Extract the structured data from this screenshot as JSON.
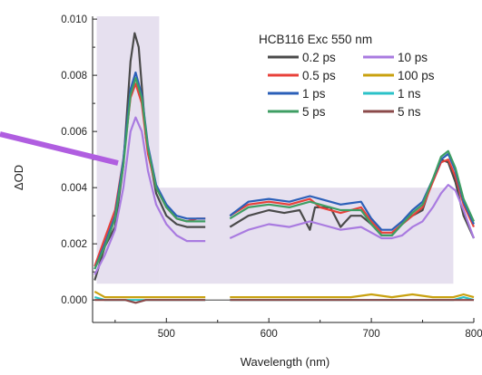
{
  "chart_data": {
    "type": "line",
    "title": "",
    "xlabel": "Wavelength (nm)",
    "ylabel": "ΔOD",
    "xlim": [
      428,
      800
    ],
    "ylim": [
      -0.0008,
      0.0101
    ],
    "x_ticks": [
      500,
      600,
      700,
      800
    ],
    "x_tick_labels": [
      "500",
      "600",
      "700",
      "800"
    ],
    "y_ticks": [
      0.0,
      0.002,
      0.004,
      0.006,
      0.008,
      0.01
    ],
    "y_tick_labels": [
      "0.000",
      "0.002",
      "0.004",
      "0.006",
      "0.008",
      "0.010"
    ],
    "legend_title": "HCB116 Exc 550 nm",
    "legend_position": "top-right",
    "gap_nm": [
      538,
      562
    ],
    "shaded_regions": [
      {
        "x": [
          432,
          493
        ],
        "y": [
          0.00058,
          0.0101
        ],
        "color": "#ddd5ea"
      },
      {
        "x": [
          493,
          780
        ],
        "y": [
          0.00058,
          0.004
        ],
        "color": "#ddd5ea"
      }
    ],
    "annotation_arrow": {
      "color": "#b05ee0",
      "from": [
        350,
        0.0056
      ],
      "to": [
        465,
        0.0045
      ]
    },
    "series": [
      {
        "name": "0.2 ps",
        "color": "#4a4a4a",
        "values": [
          [
            430,
            0.0007
          ],
          [
            440,
            0.0019
          ],
          [
            450,
            0.0026
          ],
          [
            458,
            0.0048
          ],
          [
            465,
            0.0085
          ],
          [
            469,
            0.0095
          ],
          [
            473,
            0.009
          ],
          [
            480,
            0.0058
          ],
          [
            490,
            0.0038
          ],
          [
            500,
            0.003
          ],
          [
            510,
            0.0027
          ],
          [
            520,
            0.0026
          ],
          [
            530,
            0.0026
          ],
          [
            538,
            0.0026
          ],
          [
            562,
            0.0026
          ],
          [
            580,
            0.003
          ],
          [
            600,
            0.0032
          ],
          [
            615,
            0.0031
          ],
          [
            630,
            0.0032
          ],
          [
            640,
            0.0025
          ],
          [
            645,
            0.0033
          ],
          [
            660,
            0.0033
          ],
          [
            670,
            0.0026
          ],
          [
            680,
            0.003
          ],
          [
            690,
            0.003
          ],
          [
            700,
            0.0027
          ],
          [
            710,
            0.0023
          ],
          [
            720,
            0.0023
          ],
          [
            730,
            0.0027
          ],
          [
            740,
            0.003
          ],
          [
            750,
            0.0032
          ],
          [
            760,
            0.0043
          ],
          [
            768,
            0.005
          ],
          [
            775,
            0.0049
          ],
          [
            782,
            0.0042
          ],
          [
            790,
            0.003
          ],
          [
            800,
            0.0022
          ]
        ]
      },
      {
        "name": "0.5 ps",
        "color": "#e8413a",
        "values": [
          [
            430,
            0.0012
          ],
          [
            440,
            0.0022
          ],
          [
            450,
            0.0032
          ],
          [
            458,
            0.005
          ],
          [
            465,
            0.0072
          ],
          [
            470,
            0.0077
          ],
          [
            476,
            0.007
          ],
          [
            482,
            0.0052
          ],
          [
            490,
            0.004
          ],
          [
            500,
            0.0033
          ],
          [
            510,
            0.0029
          ],
          [
            520,
            0.0028
          ],
          [
            530,
            0.0029
          ],
          [
            538,
            0.0029
          ],
          [
            562,
            0.003
          ],
          [
            580,
            0.0034
          ],
          [
            600,
            0.0035
          ],
          [
            620,
            0.0034
          ],
          [
            640,
            0.0036
          ],
          [
            650,
            0.0033
          ],
          [
            670,
            0.0031
          ],
          [
            690,
            0.0033
          ],
          [
            700,
            0.0028
          ],
          [
            710,
            0.0024
          ],
          [
            720,
            0.0024
          ],
          [
            730,
            0.0027
          ],
          [
            740,
            0.003
          ],
          [
            750,
            0.0033
          ],
          [
            760,
            0.0042
          ],
          [
            768,
            0.0049
          ],
          [
            775,
            0.005
          ],
          [
            782,
            0.0044
          ],
          [
            790,
            0.0034
          ],
          [
            800,
            0.0026
          ]
        ]
      },
      {
        "name": "1 ps",
        "color": "#2b5fb8",
        "values": [
          [
            430,
            0.0011
          ],
          [
            440,
            0.002
          ],
          [
            450,
            0.003
          ],
          [
            458,
            0.005
          ],
          [
            465,
            0.0075
          ],
          [
            470,
            0.0081
          ],
          [
            476,
            0.0073
          ],
          [
            482,
            0.0055
          ],
          [
            490,
            0.0041
          ],
          [
            500,
            0.0034
          ],
          [
            510,
            0.003
          ],
          [
            520,
            0.0029
          ],
          [
            530,
            0.0029
          ],
          [
            538,
            0.0029
          ],
          [
            562,
            0.003
          ],
          [
            580,
            0.0035
          ],
          [
            600,
            0.0036
          ],
          [
            620,
            0.0035
          ],
          [
            640,
            0.0037
          ],
          [
            650,
            0.0036
          ],
          [
            670,
            0.0034
          ],
          [
            690,
            0.0035
          ],
          [
            700,
            0.0029
          ],
          [
            710,
            0.0025
          ],
          [
            720,
            0.0025
          ],
          [
            730,
            0.0028
          ],
          [
            740,
            0.0032
          ],
          [
            750,
            0.0035
          ],
          [
            760,
            0.0043
          ],
          [
            768,
            0.005
          ],
          [
            775,
            0.0052
          ],
          [
            782,
            0.0046
          ],
          [
            790,
            0.0035
          ],
          [
            800,
            0.0027
          ]
        ]
      },
      {
        "name": "5 ps",
        "color": "#3e9e63",
        "values": [
          [
            430,
            0.0011
          ],
          [
            440,
            0.0019
          ],
          [
            450,
            0.0029
          ],
          [
            458,
            0.0048
          ],
          [
            465,
            0.0073
          ],
          [
            470,
            0.0079
          ],
          [
            476,
            0.0072
          ],
          [
            482,
            0.0054
          ],
          [
            490,
            0.004
          ],
          [
            500,
            0.0033
          ],
          [
            510,
            0.0029
          ],
          [
            520,
            0.0028
          ],
          [
            530,
            0.0028
          ],
          [
            538,
            0.0028
          ],
          [
            562,
            0.0029
          ],
          [
            580,
            0.0033
          ],
          [
            600,
            0.0034
          ],
          [
            620,
            0.0033
          ],
          [
            640,
            0.0035
          ],
          [
            650,
            0.0034
          ],
          [
            670,
            0.0032
          ],
          [
            690,
            0.0032
          ],
          [
            700,
            0.0027
          ],
          [
            710,
            0.0023
          ],
          [
            720,
            0.0023
          ],
          [
            730,
            0.0027
          ],
          [
            740,
            0.0031
          ],
          [
            750,
            0.0034
          ],
          [
            760,
            0.0043
          ],
          [
            768,
            0.0051
          ],
          [
            775,
            0.0053
          ],
          [
            782,
            0.0047
          ],
          [
            790,
            0.0036
          ],
          [
            800,
            0.0028
          ]
        ]
      },
      {
        "name": "10 ps",
        "color": "#a97be0",
        "values": [
          [
            430,
            0.0009
          ],
          [
            440,
            0.0016
          ],
          [
            450,
            0.0025
          ],
          [
            458,
            0.004
          ],
          [
            465,
            0.006
          ],
          [
            470,
            0.0065
          ],
          [
            476,
            0.006
          ],
          [
            482,
            0.0046
          ],
          [
            490,
            0.0034
          ],
          [
            500,
            0.0027
          ],
          [
            510,
            0.0023
          ],
          [
            520,
            0.0021
          ],
          [
            530,
            0.0021
          ],
          [
            538,
            0.0021
          ],
          [
            562,
            0.0022
          ],
          [
            580,
            0.0025
          ],
          [
            600,
            0.0027
          ],
          [
            620,
            0.0026
          ],
          [
            640,
            0.0028
          ],
          [
            650,
            0.0027
          ],
          [
            670,
            0.0025
          ],
          [
            690,
            0.0026
          ],
          [
            700,
            0.0024
          ],
          [
            710,
            0.0022
          ],
          [
            720,
            0.0022
          ],
          [
            730,
            0.0023
          ],
          [
            740,
            0.0026
          ],
          [
            750,
            0.0028
          ],
          [
            760,
            0.0033
          ],
          [
            768,
            0.0038
          ],
          [
            775,
            0.0041
          ],
          [
            782,
            0.0039
          ],
          [
            790,
            0.0032
          ],
          [
            800,
            0.0022
          ]
        ]
      },
      {
        "name": "100 ps",
        "color": "#c9a10f",
        "values": [
          [
            430,
            0.0003
          ],
          [
            440,
            0.0001
          ],
          [
            450,
            0.0001
          ],
          [
            460,
            0.0001
          ],
          [
            470,
            0.0001
          ],
          [
            480,
            0.0001
          ],
          [
            490,
            0.0001
          ],
          [
            500,
            0.0001
          ],
          [
            510,
            0.0001
          ],
          [
            520,
            0.0001
          ],
          [
            530,
            0.0001
          ],
          [
            538,
            0.0001
          ],
          [
            562,
            0.0001
          ],
          [
            580,
            0.0001
          ],
          [
            600,
            0.0001
          ],
          [
            620,
            0.0001
          ],
          [
            640,
            0.0001
          ],
          [
            660,
            0.0001
          ],
          [
            680,
            0.0001
          ],
          [
            700,
            0.0002
          ],
          [
            720,
            0.0001
          ],
          [
            740,
            0.0002
          ],
          [
            760,
            0.0001
          ],
          [
            780,
            0.0001
          ],
          [
            790,
            0.0002
          ],
          [
            800,
            0.0001
          ]
        ]
      },
      {
        "name": "1 ns",
        "color": "#2bc2c8",
        "values": [
          [
            430,
            0.0001
          ],
          [
            440,
            0.0
          ],
          [
            450,
            0.0
          ],
          [
            460,
            0.0
          ],
          [
            470,
            0.0
          ],
          [
            480,
            0.0
          ],
          [
            490,
            0.0
          ],
          [
            500,
            0.0
          ],
          [
            510,
            0.0
          ],
          [
            520,
            0.0
          ],
          [
            530,
            0.0
          ],
          [
            538,
            0.0
          ],
          [
            562,
            0.0
          ],
          [
            580,
            0.0
          ],
          [
            600,
            0.0
          ],
          [
            620,
            0.0
          ],
          [
            640,
            0.0
          ],
          [
            660,
            0.0
          ],
          [
            680,
            0.0
          ],
          [
            700,
            0.0
          ],
          [
            720,
            0.0
          ],
          [
            740,
            0.0
          ],
          [
            760,
            0.0
          ],
          [
            780,
            0.0
          ],
          [
            790,
            0.0001
          ],
          [
            800,
            0.0
          ]
        ]
      },
      {
        "name": "5 ns",
        "color": "#8b4a4a",
        "values": [
          [
            430,
            0.0
          ],
          [
            440,
            0.0
          ],
          [
            450,
            0.0
          ],
          [
            460,
            0.0
          ],
          [
            470,
            -0.0001
          ],
          [
            480,
            0.0
          ],
          [
            490,
            0.0
          ],
          [
            500,
            0.0
          ],
          [
            510,
            0.0
          ],
          [
            520,
            0.0
          ],
          [
            530,
            0.0
          ],
          [
            538,
            0.0
          ],
          [
            562,
            0.0
          ],
          [
            580,
            0.0
          ],
          [
            600,
            0.0
          ],
          [
            620,
            0.0
          ],
          [
            640,
            0.0
          ],
          [
            660,
            0.0
          ],
          [
            680,
            0.0
          ],
          [
            700,
            0.0
          ],
          [
            720,
            0.0
          ],
          [
            740,
            0.0
          ],
          [
            760,
            0.0
          ],
          [
            780,
            0.0
          ],
          [
            790,
            0.0
          ],
          [
            800,
            0.0
          ]
        ]
      }
    ]
  }
}
